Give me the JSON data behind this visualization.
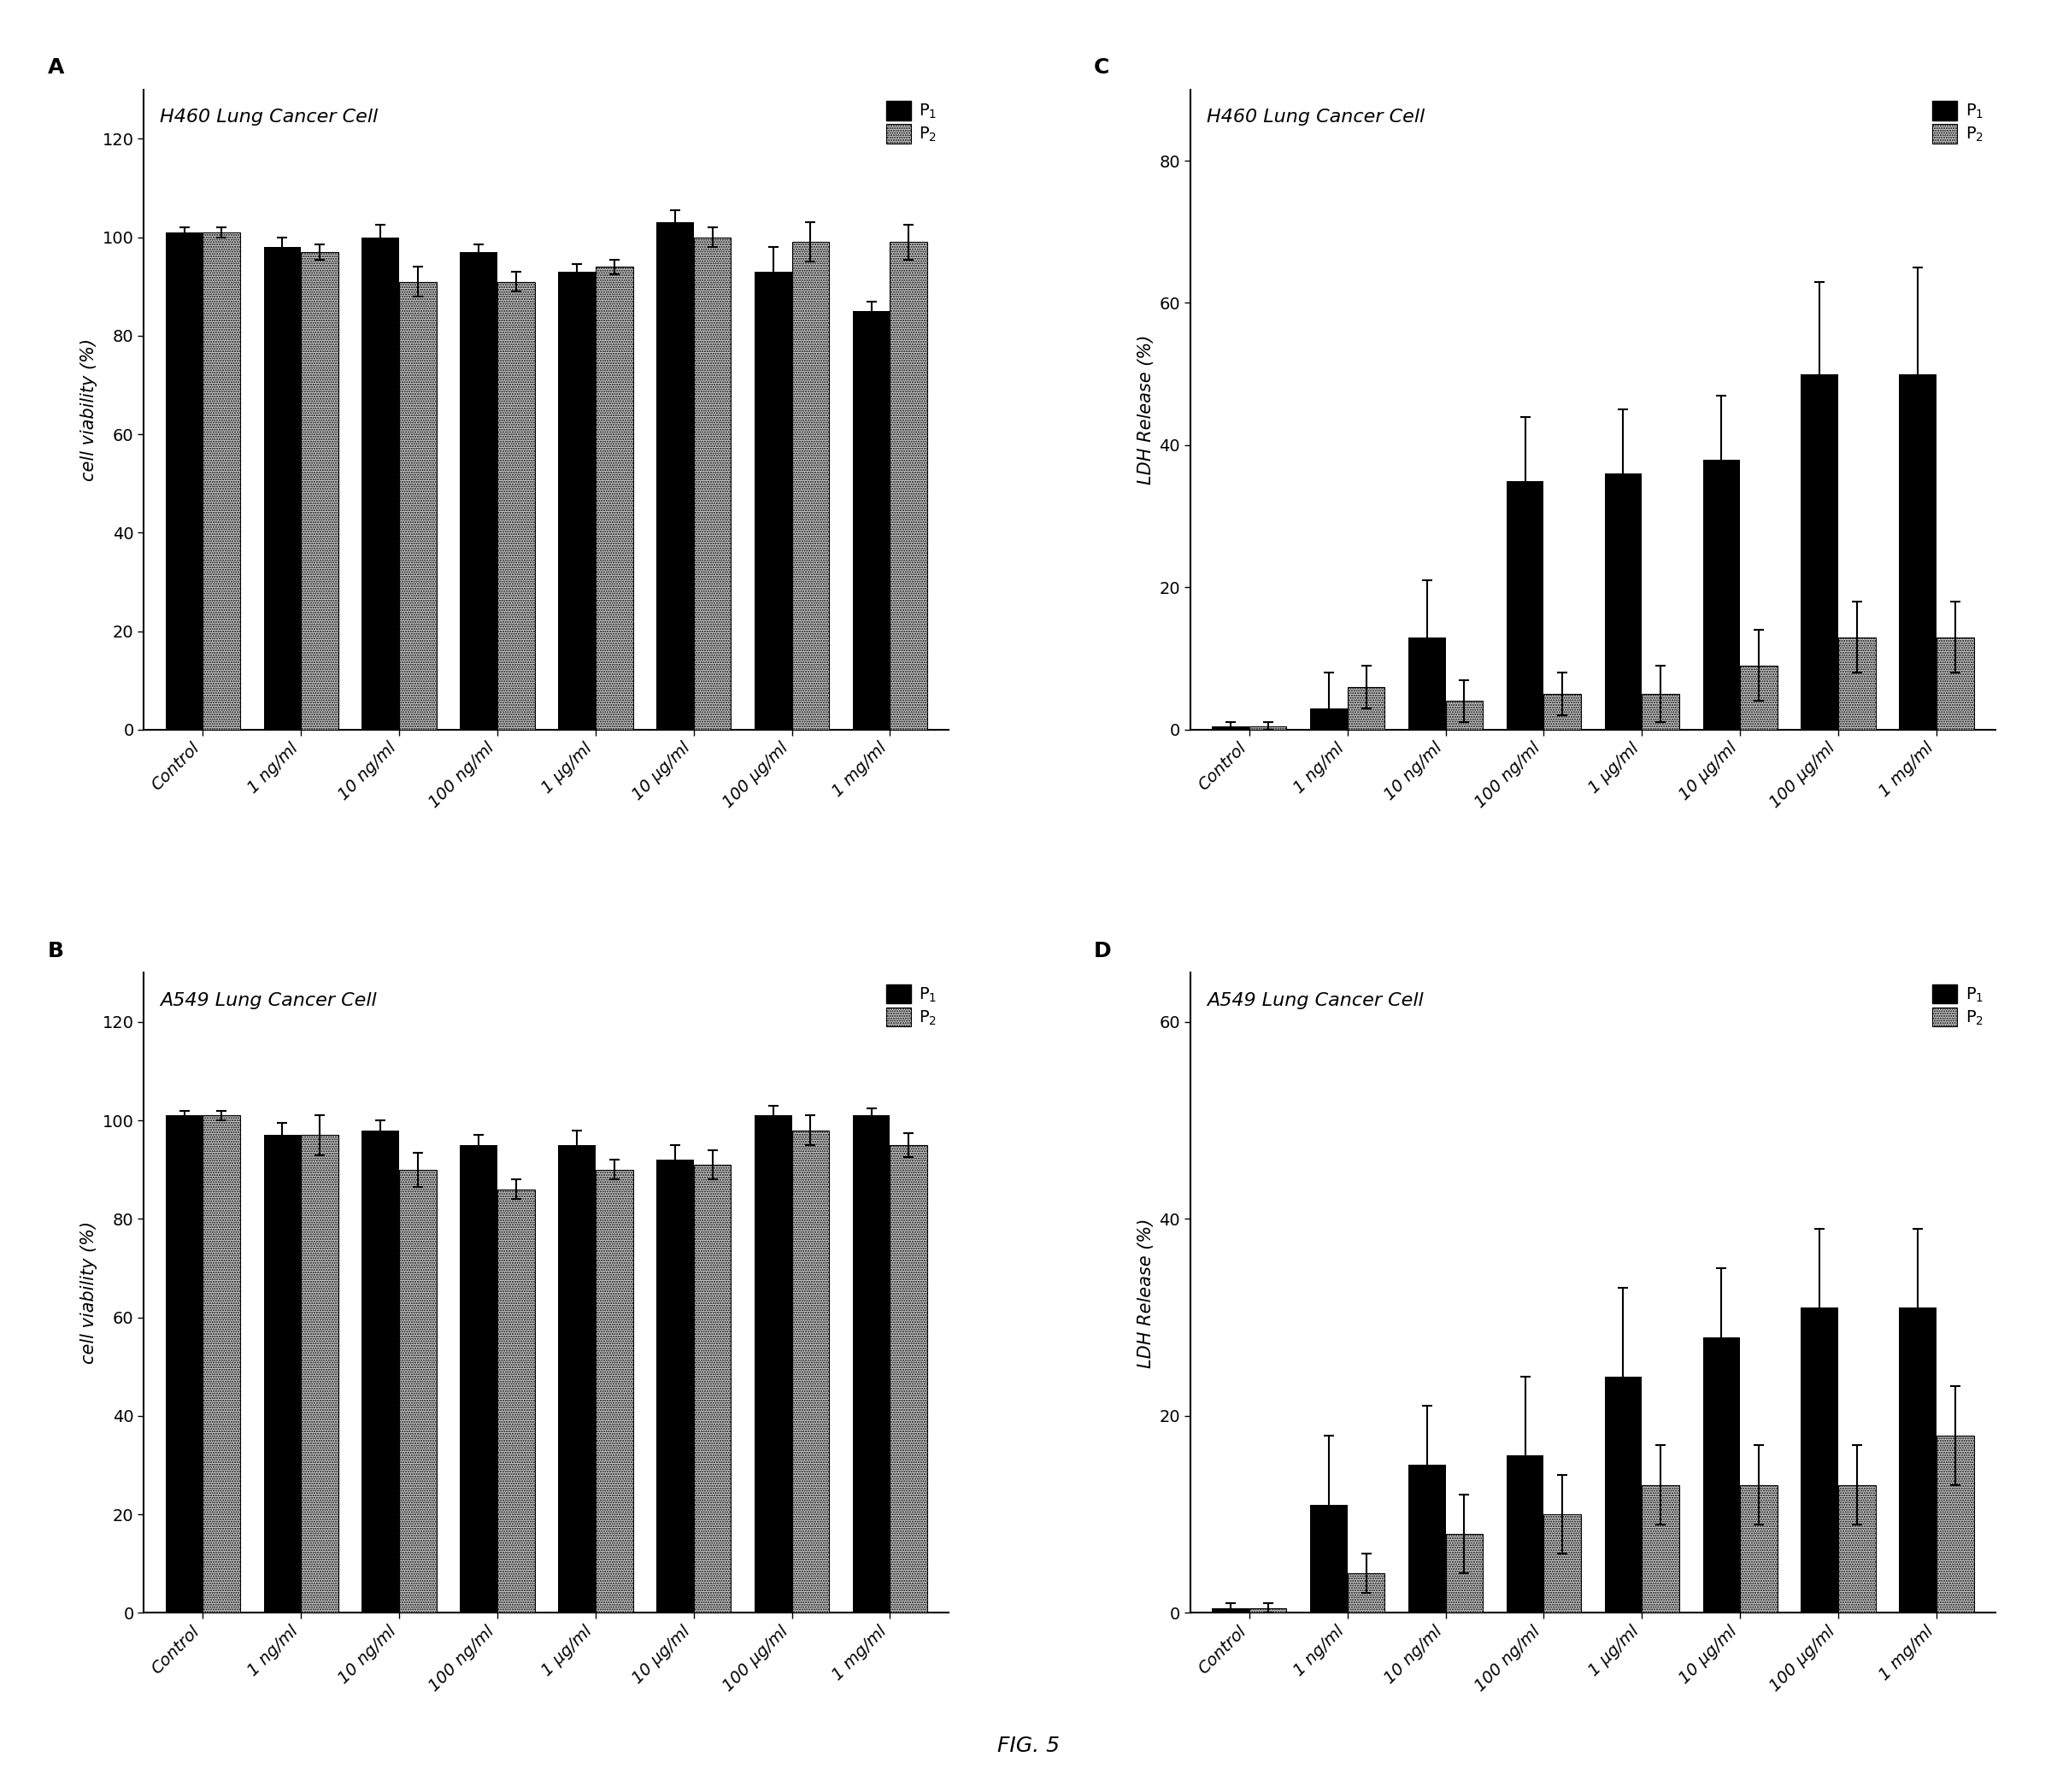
{
  "categories": [
    "Control",
    "1 ng/ml",
    "10 ng/ml",
    "100 ng/ml",
    "1 μg/ml",
    "10 μg/ml",
    "100 μg/ml",
    "1 mg/ml"
  ],
  "A_p1_vals": [
    101,
    98,
    100,
    97,
    93,
    103,
    93,
    85
  ],
  "A_p2_vals": [
    101,
    97,
    91,
    91,
    94,
    100,
    99,
    99
  ],
  "A_p1_err": [
    1.0,
    2.0,
    2.5,
    1.5,
    1.5,
    2.5,
    5.0,
    2.0
  ],
  "A_p2_err": [
    1.0,
    1.5,
    3.0,
    2.0,
    1.5,
    2.0,
    4.0,
    3.5
  ],
  "A_title": "H460 Lung Cancer Cell",
  "A_ylabel": "cell viability (%)",
  "A_ylim": [
    0,
    130
  ],
  "A_yticks": [
    0,
    20,
    40,
    60,
    80,
    100,
    120
  ],
  "B_p1_vals": [
    101,
    97,
    98,
    95,
    95,
    92,
    101,
    101
  ],
  "B_p2_vals": [
    101,
    97,
    90,
    86,
    90,
    91,
    98,
    95
  ],
  "B_p1_err": [
    1.0,
    2.5,
    2.0,
    2.0,
    3.0,
    3.0,
    2.0,
    1.5
  ],
  "B_p2_err": [
    1.0,
    4.0,
    3.5,
    2.0,
    2.0,
    3.0,
    3.0,
    2.5
  ],
  "B_title": "A549 Lung Cancer Cell",
  "B_ylabel": "cell viability (%)",
  "B_ylim": [
    0,
    130
  ],
  "B_yticks": [
    0,
    20,
    40,
    60,
    80,
    100,
    120
  ],
  "C_p1_vals": [
    0.5,
    3,
    13,
    35,
    36,
    38,
    50,
    50
  ],
  "C_p2_vals": [
    0.5,
    6,
    4,
    5,
    5,
    9,
    13,
    13
  ],
  "C_p1_err": [
    0.5,
    5,
    8,
    9,
    9,
    9,
    13,
    15
  ],
  "C_p2_err": [
    0.5,
    3,
    3,
    3,
    4,
    5,
    5,
    5
  ],
  "C_title": "H460 Lung Cancer Cell",
  "C_ylabel": "LDH Release (%)",
  "C_ylim": [
    0,
    90
  ],
  "C_yticks": [
    0,
    20,
    40,
    60,
    80
  ],
  "D_p1_vals": [
    0.5,
    11,
    15,
    16,
    24,
    28,
    31,
    31
  ],
  "D_p2_vals": [
    0.5,
    4,
    8,
    10,
    13,
    13,
    13,
    18
  ],
  "D_p1_err": [
    0.5,
    7,
    6,
    8,
    9,
    7,
    8,
    8
  ],
  "D_p2_err": [
    0.5,
    2,
    4,
    4,
    4,
    4,
    4,
    5
  ],
  "D_title": "A549 Lung Cancer Cell",
  "D_ylabel": "LDH Release (%)",
  "D_ylim": [
    0,
    65
  ],
  "D_yticks": [
    0,
    20,
    40,
    60
  ],
  "fig_label": "FIG. 5",
  "color_p1": "#000000",
  "bar_width": 0.38,
  "legend_p1": "P$_1$",
  "legend_p2": "P$_2$",
  "title_fontsize": 16,
  "label_fontsize": 15,
  "tick_fontsize": 14,
  "legend_fontsize": 14,
  "panel_fontsize": 18,
  "fig_label_fontsize": 18
}
